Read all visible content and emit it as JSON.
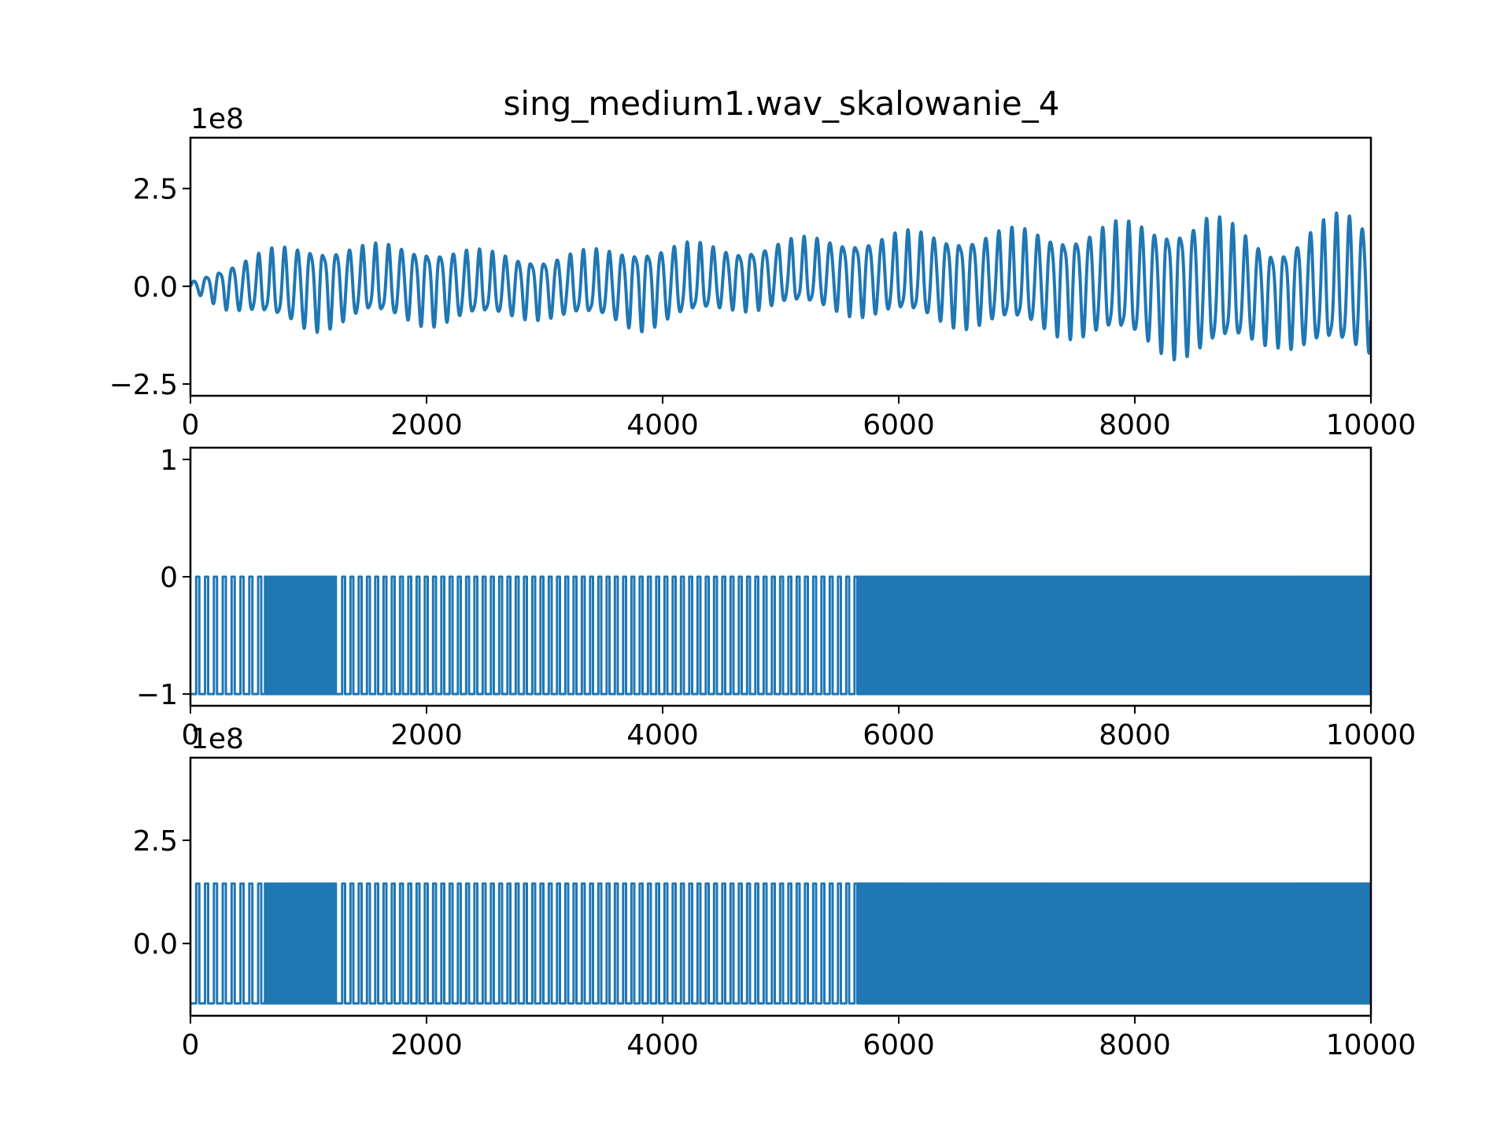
{
  "chart_data": [
    {
      "type": "line",
      "title": "sing_medium1.wav_skalowanie_4",
      "offset_text": "1e8",
      "xlim": [
        0,
        10000
      ],
      "ylim": [
        -2.8,
        3.8
      ],
      "xticks": [
        0,
        2000,
        4000,
        6000,
        8000,
        10000
      ],
      "xtick_labels": [
        "0",
        "2000",
        "4000",
        "6000",
        "8000",
        "10000"
      ],
      "yticks": [
        -2.5,
        0.0,
        2.5
      ],
      "ytick_labels": [
        "−2.5",
        "0.0",
        "2.5"
      ],
      "color": "#1f77b4",
      "series": [
        {
          "signal": "oscillation",
          "x_range": [
            0,
            10000
          ],
          "envelope_x": [
            0,
            300,
            700,
            1000,
            1500,
            2000,
            2500,
            3000,
            3500,
            3800,
            4200,
            4600,
            5000,
            5500,
            6000,
            6500,
            7000,
            7500,
            8000,
            8300,
            8600,
            8900,
            9200,
            9500,
            9800,
            10000
          ],
          "envelope_amp": [
            0.1,
            0.5,
            0.8,
            1.0,
            0.8,
            0.9,
            0.75,
            0.7,
            0.8,
            0.95,
            0.85,
            0.7,
            0.75,
            0.85,
            0.95,
            1.05,
            1.1,
            1.2,
            1.35,
            1.5,
            1.6,
            1.3,
            1.1,
            1.4,
            1.6,
            1.5
          ],
          "envelope_center": [
            0.0,
            0.0,
            0.0,
            0.0,
            0.1,
            0.05,
            0.0,
            0.0,
            0.0,
            0.0,
            0.1,
            0.2,
            0.3,
            0.3,
            0.25,
            0.2,
            0.15,
            0.1,
            0.05,
            0.0,
            0.0,
            -0.1,
            -0.2,
            -0.1,
            0.0,
            0.0
          ],
          "period": 110
        }
      ]
    },
    {
      "type": "line",
      "xlim": [
        0,
        10000
      ],
      "ylim": [
        -1.1,
        1.1
      ],
      "xticks": [
        0,
        2000,
        4000,
        6000,
        8000,
        10000
      ],
      "xtick_labels": [
        "0",
        "2000",
        "4000",
        "6000",
        "8000",
        "10000"
      ],
      "yticks": [
        -1,
        0,
        1
      ],
      "ytick_labels": [
        "−1",
        "0",
        "1"
      ],
      "color": "#1f77b4",
      "series": [
        {
          "signal": "square",
          "low": -1,
          "high": 0,
          "x_range": [
            0,
            10000
          ],
          "segments": [
            {
              "x": [
                0,
                620
              ],
              "period": 75
            },
            {
              "x": [
                620,
                1240
              ],
              "period": 18
            },
            {
              "x": [
                1240,
                5650
              ],
              "period": 70
            },
            {
              "x": [
                5650,
                10000
              ],
              "period": 16
            }
          ]
        }
      ]
    },
    {
      "type": "line",
      "offset_text": "1e8",
      "xlim": [
        0,
        10000
      ],
      "ylim": [
        -1.75,
        4.5
      ],
      "xticks": [
        0,
        2000,
        4000,
        6000,
        8000,
        10000
      ],
      "xtick_labels": [
        "0",
        "2000",
        "4000",
        "6000",
        "8000",
        "10000"
      ],
      "yticks": [
        0.0,
        2.5
      ],
      "ytick_labels": [
        "0.0",
        "2.5"
      ],
      "color": "#1f77b4",
      "series": [
        {
          "signal": "square",
          "low": -1.45,
          "high": 1.45,
          "x_range": [
            0,
            10000
          ],
          "segments": [
            {
              "x": [
                0,
                620
              ],
              "period": 75
            },
            {
              "x": [
                620,
                1240
              ],
              "period": 18
            },
            {
              "x": [
                1240,
                5650
              ],
              "period": 70
            },
            {
              "x": [
                5650,
                10000
              ],
              "period": 16
            }
          ]
        }
      ]
    }
  ]
}
